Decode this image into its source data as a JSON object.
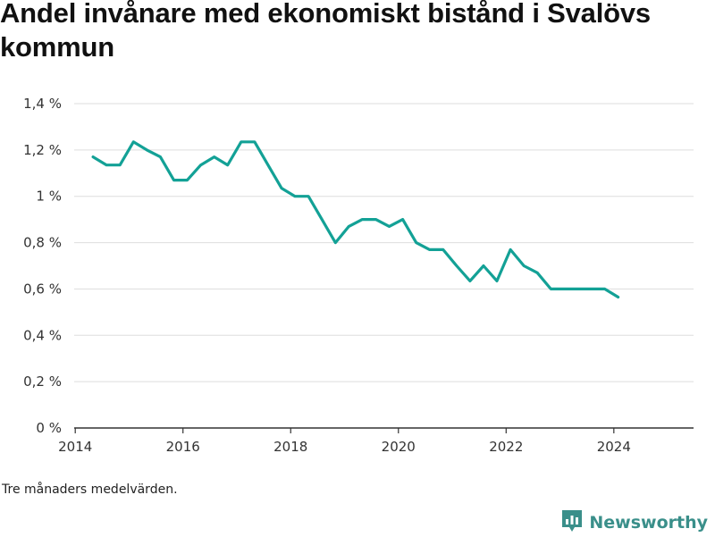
{
  "title": "Andel invånare med ekonomiskt bistånd i Svalövs kommun",
  "note": "Tre månaders medelvärden.",
  "brand": {
    "name": "Newsworthy",
    "icon": "bar-chart-logo-icon",
    "color": "#3a8f8a"
  },
  "colors": {
    "line": "#13a196",
    "grid": "#dddddd",
    "axis": "#333333"
  },
  "chart_data": {
    "type": "line",
    "title": "Andel invånare med ekonomiskt bistånd i Svalövs kommun",
    "xlabel": "",
    "ylabel": "",
    "xlim": [
      2013.98,
      2025.48
    ],
    "ylim": [
      0,
      1.4
    ],
    "x_ticks": [
      2014,
      2016,
      2018,
      2020,
      2022,
      2024
    ],
    "x_tick_labels": [
      "2014",
      "2016",
      "2018",
      "2020",
      "2022",
      "2024"
    ],
    "y_ticks": [
      0,
      0.2,
      0.4,
      0.6,
      0.8,
      1.0,
      1.2,
      1.4
    ],
    "y_tick_labels": [
      "0 %",
      "0,2 %",
      "0,4 %",
      "0,6 %",
      "0,8 %",
      "1 %",
      "1,2 %",
      "1,4 %"
    ],
    "grid": true,
    "series": [
      {
        "x": [
          2014.33,
          2014.58,
          2014.83,
          2015.08,
          2015.33,
          2015.58,
          2015.83,
          2016.08,
          2016.33,
          2016.58,
          2016.83,
          2017.08,
          2017.33,
          2017.58,
          2017.83,
          2018.08,
          2018.33,
          2018.58,
          2018.83,
          2019.08,
          2019.33,
          2019.58,
          2019.83,
          2020.08,
          2020.33,
          2020.58,
          2020.83,
          2021.08,
          2021.33,
          2021.58,
          2021.83,
          2022.08,
          2022.33,
          2022.58,
          2022.83,
          2023.08,
          2023.33,
          2023.58,
          2023.83,
          2024.08
        ],
        "values": [
          1.17,
          1.135,
          1.135,
          1.235,
          1.2,
          1.17,
          1.07,
          1.07,
          1.135,
          1.17,
          1.135,
          1.235,
          1.235,
          1.135,
          1.035,
          1.0,
          1.0,
          0.9,
          0.8,
          0.87,
          0.9,
          0.9,
          0.87,
          0.9,
          0.8,
          0.77,
          0.77,
          0.7,
          0.635,
          0.7,
          0.635,
          0.77,
          0.7,
          0.67,
          0.6,
          0.6,
          0.6,
          0.6,
          0.6,
          0.565
        ]
      }
    ]
  }
}
